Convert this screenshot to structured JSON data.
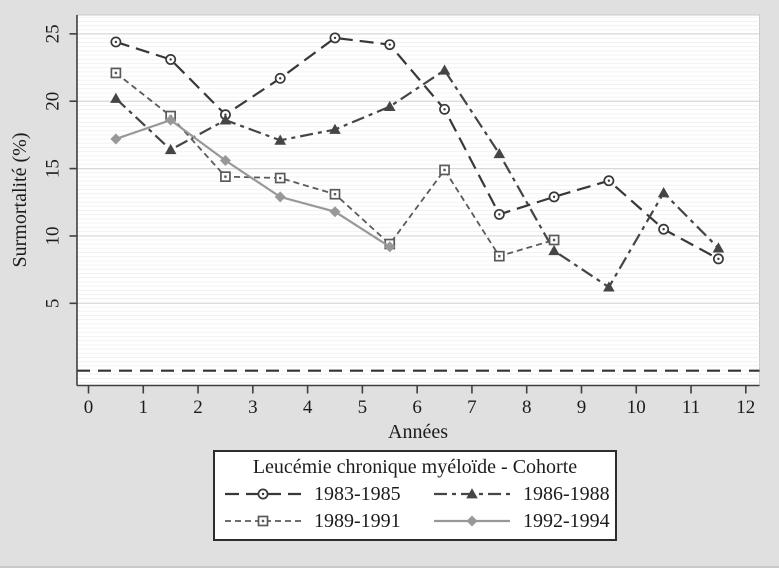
{
  "figure": {
    "background_color": "#e0e0e0",
    "plot_background_color": "#ffffff",
    "plot_stripe_color": "#f2f2f2",
    "grid_color": "#d8d8d8",
    "axis_color": "#3f3f3f",
    "text_color": "#1c1c1c"
  },
  "chart_data": {
    "type": "line",
    "title": "",
    "xlabel": "Années",
    "ylabel": "Surmortalité (%)",
    "xticks": [
      0,
      1,
      2,
      3,
      4,
      5,
      6,
      7,
      8,
      9,
      10,
      11,
      12
    ],
    "yticks": [
      5,
      10,
      15,
      20,
      25
    ],
    "xlim": [
      -0.21,
      12.25
    ],
    "ylim": [
      -1.1,
      26.4
    ],
    "grid": "horizontal-major",
    "y_tick_labels_rotated": true,
    "reference_line": {
      "y": 0,
      "style": "longdash",
      "color": "#333333"
    },
    "x": [
      0.5,
      1.5,
      2.5,
      3.5,
      4.5,
      5.5,
      6.5,
      7.5,
      8.5,
      9.5,
      10.5,
      11.5
    ],
    "series": [
      {
        "name": "1983-1985",
        "marker": "circle-hollow",
        "line": "longdash",
        "color": "#383838",
        "values": [
          24.4,
          23.1,
          19.0,
          21.7,
          24.7,
          24.2,
          19.4,
          11.6,
          12.9,
          14.1,
          10.5,
          8.3
        ]
      },
      {
        "name": "1986-1988",
        "marker": "triangle-filled",
        "line": "longdash-dot",
        "color": "#454545",
        "values": [
          20.2,
          16.4,
          18.6,
          17.1,
          17.9,
          19.6,
          22.3,
          16.1,
          8.9,
          6.2,
          13.2,
          9.1
        ]
      },
      {
        "name": "1989-1991",
        "marker": "square-hollow",
        "line": "dash",
        "color": "#5a5a5a",
        "values": [
          22.1,
          18.9,
          14.4,
          14.3,
          13.1,
          9.4,
          14.9,
          8.5,
          9.7
        ]
      },
      {
        "name": "1992-1994",
        "marker": "diamond-filled",
        "line": "solid",
        "color": "#989898",
        "values": [
          17.2,
          18.6,
          15.6,
          12.9,
          11.8,
          9.2
        ]
      }
    ],
    "legend": {
      "title": "Leucémie chronique myéloïde - Cohorte",
      "position": "bottom"
    }
  }
}
